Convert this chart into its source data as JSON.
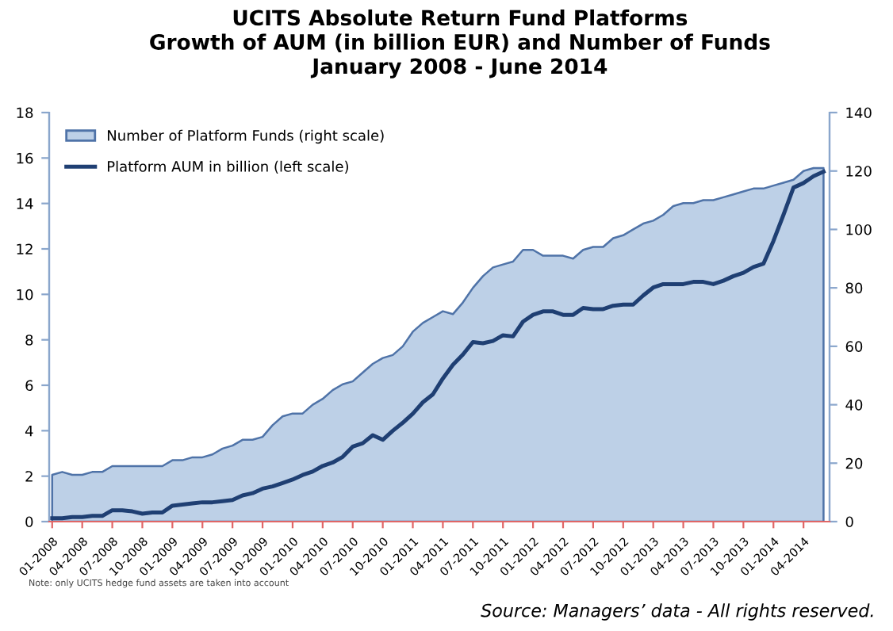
{
  "chart_data": {
    "type": "area",
    "title": "UCITS Absolute Return Fund Platforms\nGrowth of AUM (in billion EUR) and Number of Funds\nJanuary 2008 - June 2014",
    "categories": [
      "01-2008",
      null,
      null,
      "04-2008",
      null,
      null,
      "07-2008",
      null,
      null,
      "10-2008",
      null,
      null,
      "01-2009",
      null,
      null,
      "04-2009",
      null,
      null,
      "07-2009",
      null,
      null,
      "10-2009",
      null,
      null,
      "01-2010",
      null,
      null,
      "04-2010",
      null,
      null,
      "07-2010",
      null,
      null,
      "10-2010",
      null,
      null,
      "01-2011",
      null,
      null,
      "04-2011",
      null,
      null,
      "07-2011",
      null,
      null,
      "10-2011",
      null,
      null,
      "01-2012",
      null,
      null,
      "04-2012",
      null,
      null,
      "07-2012",
      null,
      null,
      "10-2012",
      null,
      null,
      "01-2013",
      null,
      null,
      "04-2013",
      null,
      null,
      "07-2013",
      null,
      null,
      "10-2013",
      null,
      null,
      "01-2014",
      null,
      null,
      "04-2014",
      null,
      null
    ],
    "series": [
      {
        "name": "Number of Platform Funds (right scale)",
        "axis": "y2",
        "color": "#bdd0e7",
        "values": [
          16,
          17,
          16,
          16,
          17,
          17,
          19,
          19,
          19,
          19,
          19,
          19,
          21,
          21,
          22,
          22,
          23,
          25,
          26,
          28,
          28,
          29,
          33,
          36,
          37,
          37,
          40,
          42,
          45,
          47,
          48,
          51,
          54,
          56,
          57,
          60,
          65,
          68,
          70,
          72,
          71,
          75,
          80,
          84,
          87,
          88,
          89,
          93,
          93,
          91,
          91,
          91,
          90,
          93,
          94,
          94,
          97,
          98,
          100,
          102,
          103,
          105,
          108,
          109,
          109,
          110,
          110,
          111,
          112,
          113,
          114,
          114,
          115,
          116,
          117,
          120,
          121,
          121
        ]
      },
      {
        "name": "Platform AUM in billion (left scale)",
        "type": "line",
        "axis": "y",
        "color": "#1f3f73",
        "values": [
          0.15,
          0.15,
          0.2,
          0.2,
          0.25,
          0.25,
          0.5,
          0.5,
          0.45,
          0.35,
          0.4,
          0.4,
          0.7,
          0.75,
          0.8,
          0.85,
          0.85,
          0.9,
          0.95,
          1.15,
          1.25,
          1.45,
          1.55,
          1.7,
          1.85,
          2.05,
          2.2,
          2.45,
          2.6,
          2.85,
          3.3,
          3.45,
          3.8,
          3.6,
          4.0,
          4.35,
          4.75,
          5.25,
          5.6,
          6.3,
          6.9,
          7.35,
          7.9,
          7.85,
          7.95,
          8.2,
          8.15,
          8.8,
          9.1,
          9.25,
          9.25,
          9.1,
          9.1,
          9.4,
          9.35,
          9.35,
          9.5,
          9.55,
          9.55,
          9.95,
          10.3,
          10.45,
          10.45,
          10.45,
          10.55,
          10.55,
          10.45,
          10.6,
          10.8,
          10.95,
          11.2,
          11.35,
          12.35,
          13.5,
          14.7,
          14.9,
          15.2,
          15.4
        ]
      }
    ],
    "ylim": [
      0,
      18
    ],
    "yticks": [
      0,
      2,
      4,
      6,
      8,
      10,
      12,
      14,
      16,
      18
    ],
    "y2lim": [
      0,
      140
    ],
    "y2ticks": [
      0,
      20,
      40,
      60,
      80,
      100,
      120,
      140
    ],
    "legend": "top left",
    "grid": false,
    "annotations": [
      "Note: only UCITS hedge fund assets are taken into account",
      "Source: Managers’ data - All rights reserved."
    ]
  }
}
